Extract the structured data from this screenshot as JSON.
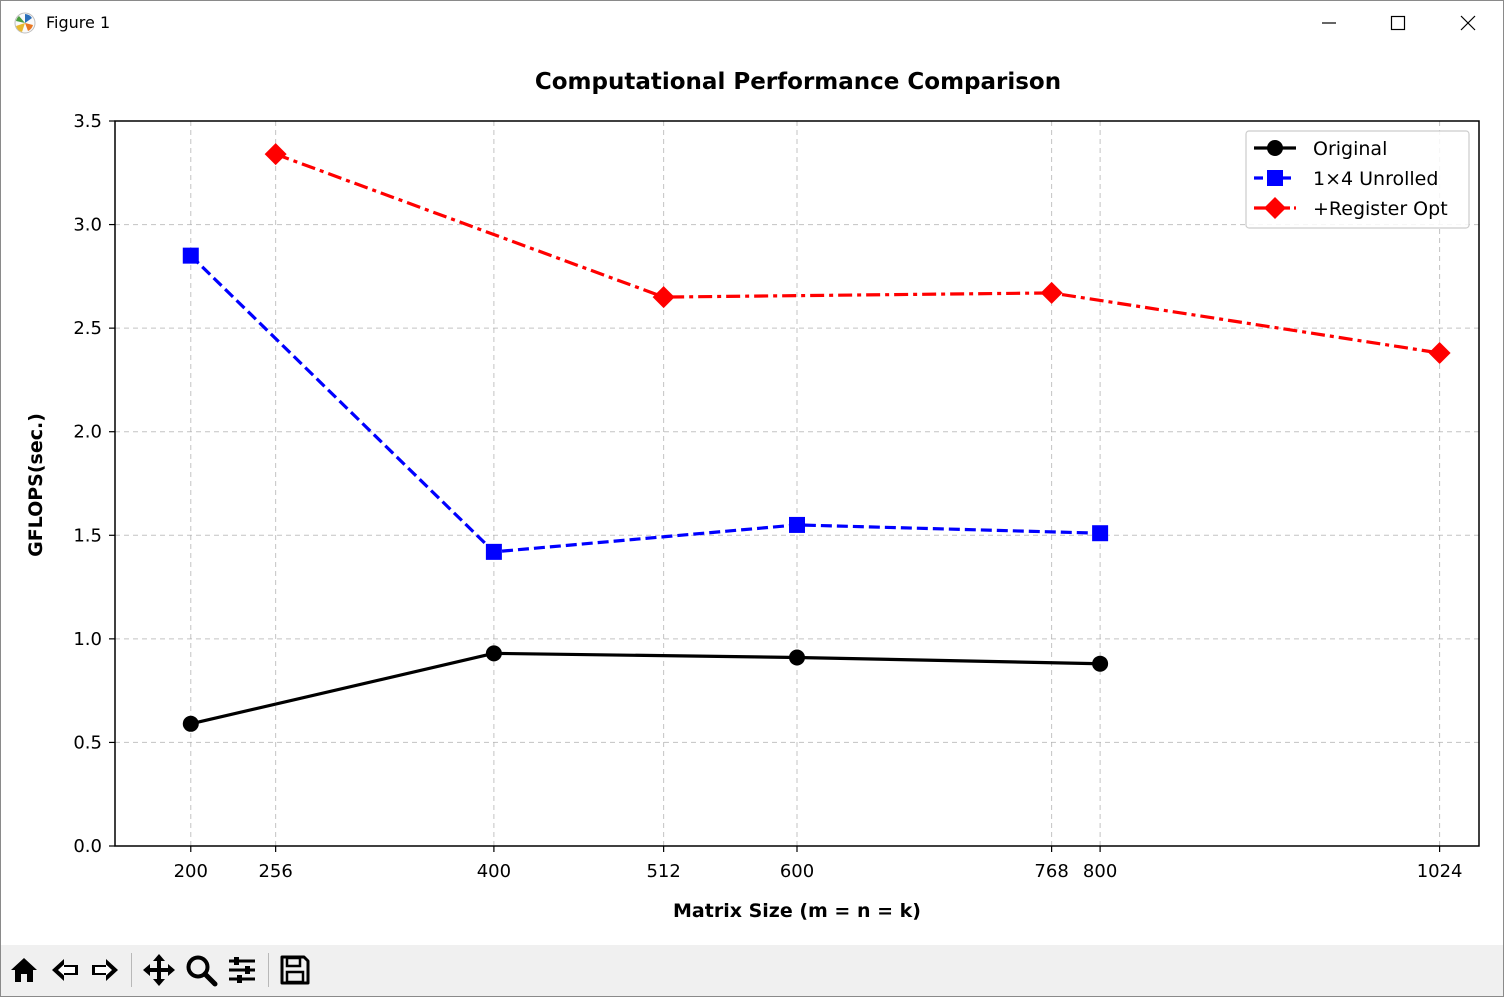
{
  "window": {
    "title": "Figure 1"
  },
  "toolbar": {
    "buttons": [
      {
        "name": "home-icon",
        "tooltip": "Reset original view"
      },
      {
        "name": "back-arrow-icon",
        "tooltip": "Back to previous view"
      },
      {
        "name": "forward-arrow-icon",
        "tooltip": "Forward to next view"
      },
      {
        "name": "pan-move-icon",
        "tooltip": "Pan axes"
      },
      {
        "name": "zoom-magnifier-icon",
        "tooltip": "Zoom to rectangle"
      },
      {
        "name": "configure-subplots-icon",
        "tooltip": "Configure subplots"
      },
      {
        "name": "save-floppy-icon",
        "tooltip": "Save the figure"
      }
    ]
  },
  "chart_data": {
    "type": "line",
    "title": "Computational Performance Comparison",
    "xlabel": "Matrix Size (m = n = k)",
    "ylabel": "GFLOPS(sec.)",
    "xlim": [
      150,
      1050
    ],
    "ylim": [
      0.0,
      3.5
    ],
    "x_ticks": [
      200,
      256,
      400,
      512,
      600,
      768,
      800,
      1024
    ],
    "y_ticks": [
      0.0,
      0.5,
      1.0,
      1.5,
      2.0,
      2.5,
      3.0,
      3.5
    ],
    "y_tick_labels": [
      "0.0",
      "0.5",
      "1.0",
      "1.5",
      "2.0",
      "2.5",
      "3.0",
      "3.5"
    ],
    "grid": true,
    "legend_position": "top-right",
    "series": [
      {
        "name": "Original",
        "color": "#000000",
        "line_style": "solid",
        "marker": "circle",
        "x": [
          200,
          400,
          600,
          800
        ],
        "values": [
          0.59,
          0.93,
          0.91,
          0.88
        ]
      },
      {
        "name": "1×4 Unrolled",
        "color": "#0000ff",
        "line_style": "dashed",
        "marker": "square",
        "x": [
          200,
          400,
          600,
          800
        ],
        "values": [
          2.85,
          1.42,
          1.55,
          1.51
        ]
      },
      {
        "name": "+Register Opt",
        "color": "#ff0000",
        "line_style": "dashdot",
        "marker": "diamond",
        "x": [
          256,
          512,
          768,
          1024
        ],
        "values": [
          3.34,
          2.65,
          2.67,
          2.38
        ]
      }
    ]
  }
}
